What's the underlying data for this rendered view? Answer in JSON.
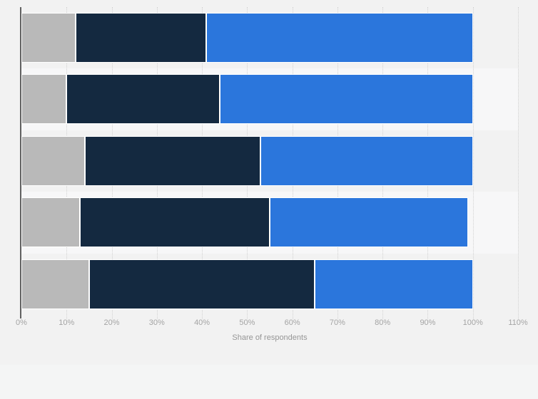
{
  "page": {
    "background": "#f2f2f2",
    "footer_background": "#f4f5f5"
  },
  "chart_data": {
    "type": "bar",
    "stacked": true,
    "orientation": "horizontal",
    "title": "",
    "xlabel": "Share of respondents",
    "xlim": [
      0,
      110
    ],
    "x_ticks": [
      "0%",
      "10%",
      "20%",
      "30%",
      "40%",
      "50%",
      "60%",
      "70%",
      "80%",
      "90%",
      "100%",
      "110%"
    ],
    "grid": "dotted-vertical-gridlines",
    "legend": "none",
    "categories": [
      "",
      "",
      "",
      "",
      ""
    ],
    "series": [
      {
        "name": "gray",
        "color": "#b9b9b9",
        "values": [
          12,
          10,
          14,
          13,
          15
        ]
      },
      {
        "name": "dark-navy",
        "color": "#142940",
        "values": [
          29,
          34,
          39,
          42,
          50
        ]
      },
      {
        "name": "blue",
        "color": "#2b76dc",
        "values": [
          59,
          56,
          47,
          44,
          35
        ]
      }
    ],
    "plot_band_colors": [
      "#f2f2f2",
      "#f7f7f8"
    ],
    "gridline_color": "#d2d2d2",
    "axis_line_color": "#616161",
    "tick_label_color": "#a4a4a4",
    "axis_title_color": "#969696"
  }
}
